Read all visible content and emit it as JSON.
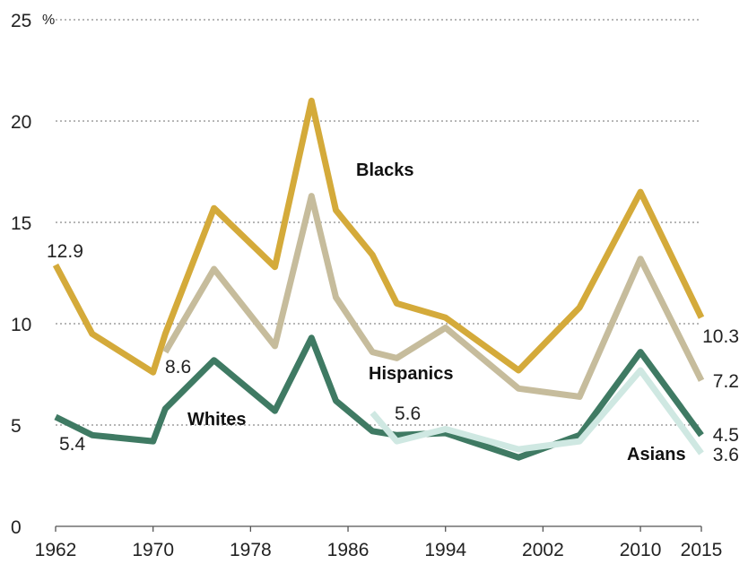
{
  "chart_data": {
    "type": "line",
    "unit": "%",
    "x_ticks": [
      1962,
      1970,
      1978,
      1986,
      1994,
      2002,
      2010,
      2015
    ],
    "y_ticks": [
      0,
      5,
      10,
      15,
      20,
      25
    ],
    "xlim": [
      1962,
      2015
    ],
    "ylim": [
      0,
      25
    ],
    "grid": true,
    "series": [
      {
        "name": "Blacks",
        "color": "#d4aa3a",
        "x": [
          1962,
          1965,
          1970,
          1971,
          1975,
          1980,
          1983,
          1985,
          1988,
          1990,
          1994,
          2000,
          2005,
          2010,
          2015
        ],
        "y": [
          12.9,
          9.5,
          7.6,
          9.5,
          15.7,
          12.8,
          21.0,
          15.6,
          13.4,
          11.0,
          10.3,
          7.7,
          10.8,
          16.5,
          10.3
        ],
        "end_label": "10.3",
        "start_label": "12.9"
      },
      {
        "name": "Hispanics",
        "color": "#c6bc9c",
        "x": [
          1971,
          1975,
          1980,
          1983,
          1985,
          1988,
          1990,
          1994,
          2000,
          2005,
          2010,
          2015
        ],
        "y": [
          8.6,
          12.7,
          8.9,
          16.3,
          11.3,
          8.6,
          8.3,
          9.8,
          6.8,
          6.4,
          13.2,
          7.2
        ],
        "end_label": "7.2",
        "start_label": "8.6"
      },
      {
        "name": "Whites",
        "color": "#3f7a63",
        "x": [
          1962,
          1965,
          1970,
          1971,
          1975,
          1980,
          1983,
          1985,
          1988,
          1990,
          1994,
          2000,
          2005,
          2010,
          2015
        ],
        "y": [
          5.4,
          4.5,
          4.2,
          5.8,
          8.2,
          5.7,
          9.3,
          6.2,
          4.7,
          4.5,
          4.6,
          3.4,
          4.5,
          8.6,
          4.5
        ],
        "end_label": "4.5",
        "start_label": "5.4"
      },
      {
        "name": "Asians",
        "color": "#cfe8e2",
        "x": [
          1988,
          1990,
          1994,
          2000,
          2005,
          2010,
          2015
        ],
        "y": [
          5.6,
          4.2,
          4.8,
          3.8,
          4.2,
          7.7,
          3.6
        ],
        "end_label": "3.6",
        "start_label": "5.6"
      }
    ]
  }
}
